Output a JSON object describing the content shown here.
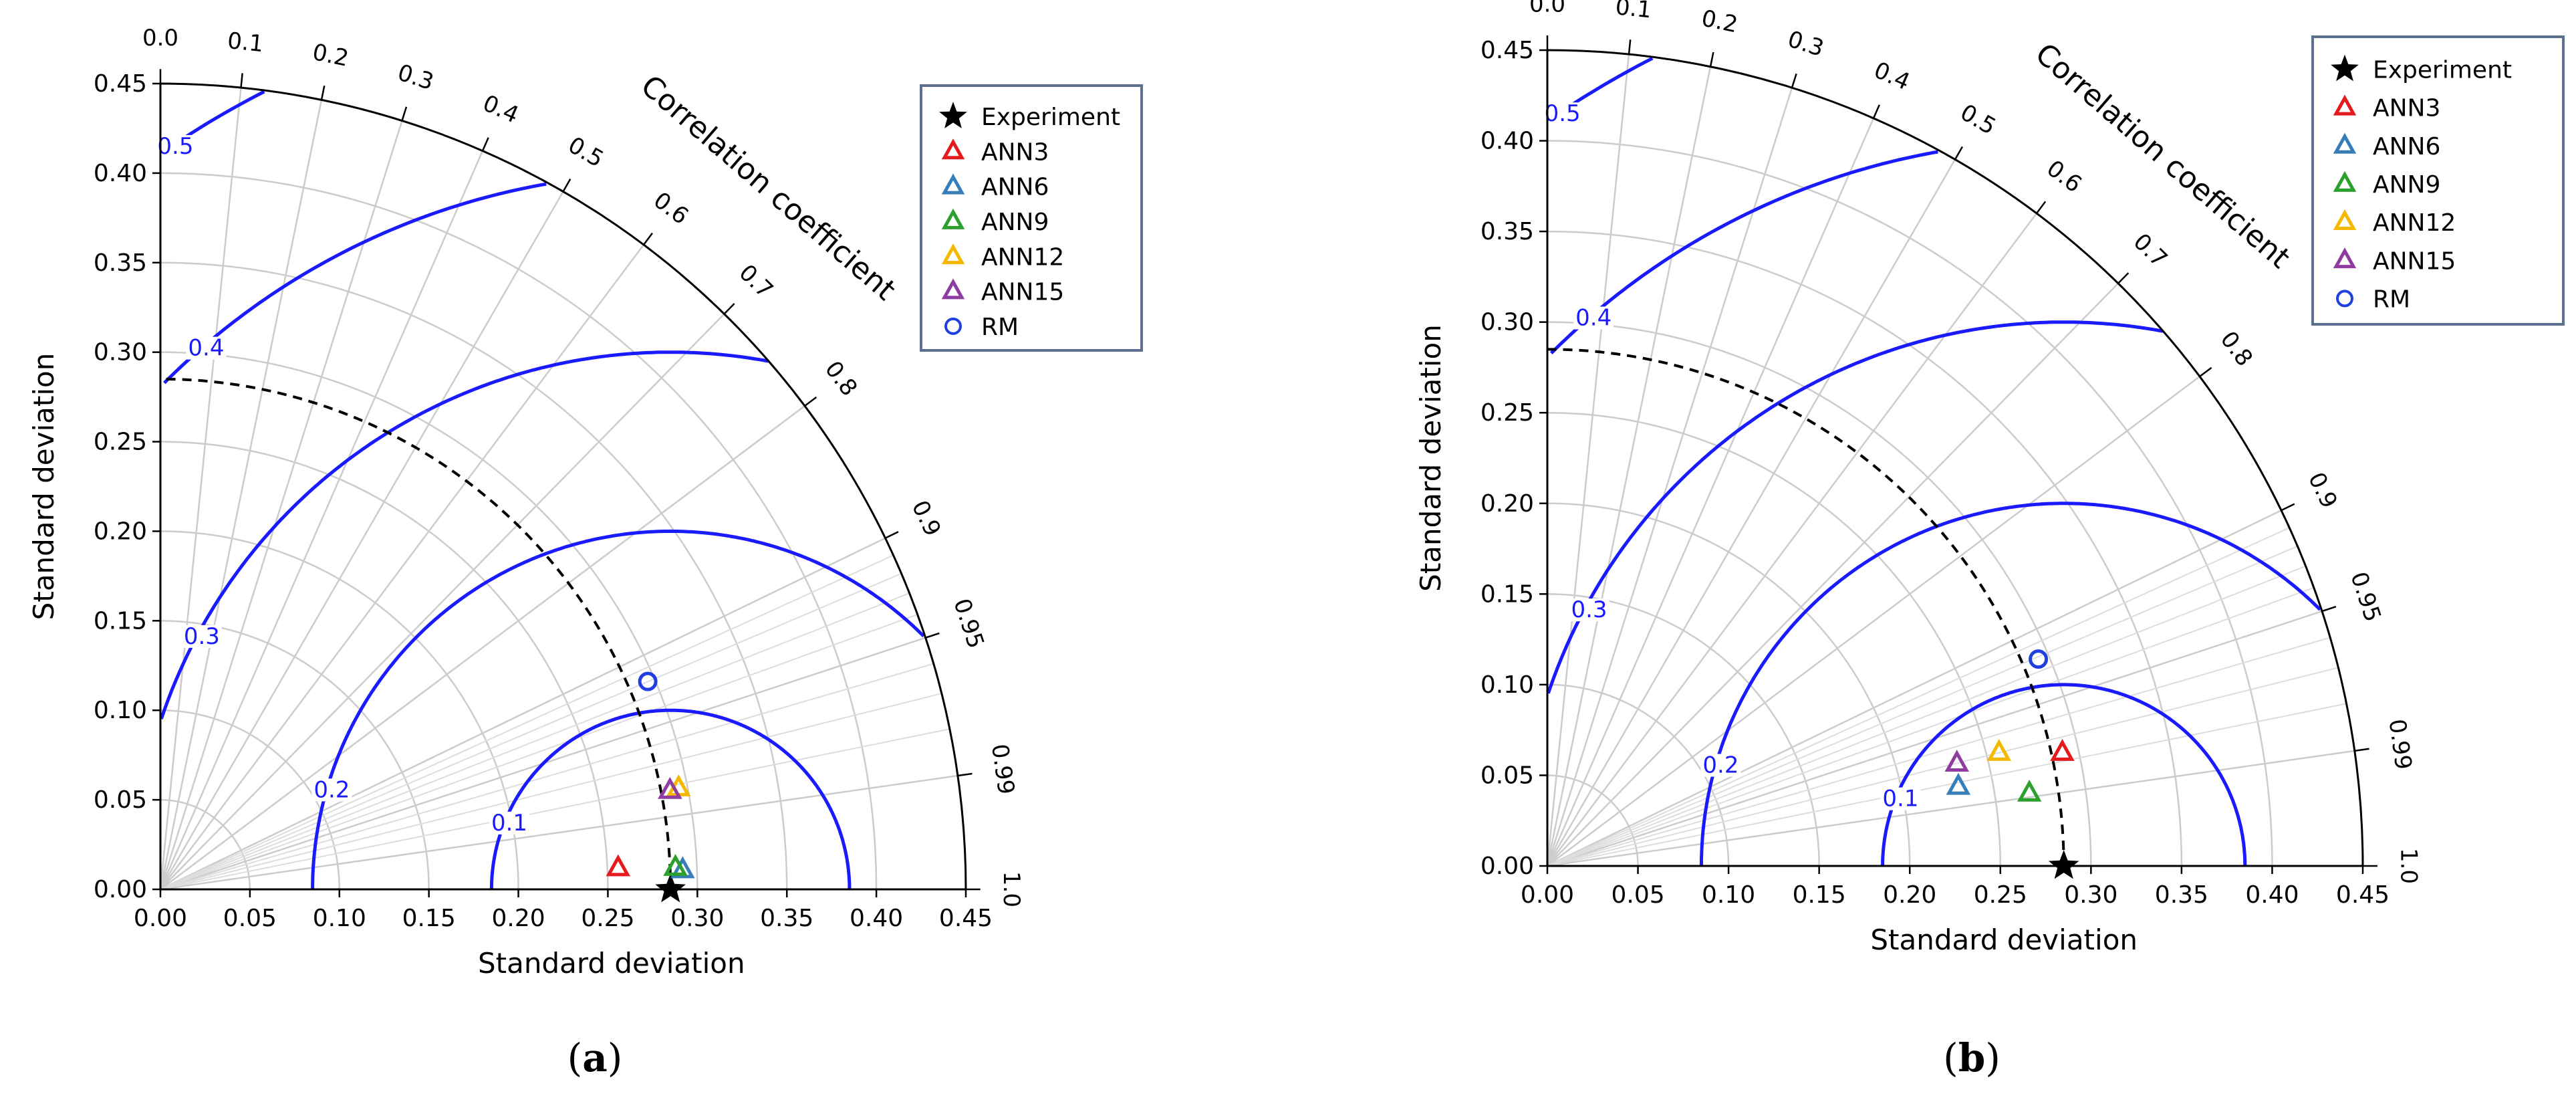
{
  "chart_data": [
    {
      "type": "scatter",
      "subtype": "taylor-diagram",
      "panel": "a",
      "xlabel": "Standard deviation",
      "ylabel": "Standard deviation",
      "angular_label": "Correlation coefficient",
      "xlim": [
        0,
        0.45
      ],
      "ylim": [
        0,
        0.45
      ],
      "std_ticks": [
        "0.00",
        "0.05",
        "0.10",
        "0.15",
        "0.20",
        "0.25",
        "0.30",
        "0.35",
        "0.40",
        "0.45"
      ],
      "std_tick_values": [
        0,
        0.05,
        0.1,
        0.15,
        0.2,
        0.25,
        0.3,
        0.35,
        0.4,
        0.45
      ],
      "corr_ticks": [
        "0.0",
        "0.1",
        "0.2",
        "0.3",
        "0.4",
        "0.5",
        "0.6",
        "0.7",
        "0.8",
        "0.9",
        "0.95",
        "0.99",
        "1.0"
      ],
      "corr_tick_values": [
        0.0,
        0.1,
        0.2,
        0.3,
        0.4,
        0.5,
        0.6,
        0.7,
        0.8,
        0.9,
        0.95,
        0.99,
        1.0
      ],
      "rms_contours": [
        {
          "value": 0.1,
          "label": "0.1"
        },
        {
          "value": 0.2,
          "label": "0.2"
        },
        {
          "value": 0.3,
          "label": "0.3"
        },
        {
          "value": 0.4,
          "label": "0.4"
        },
        {
          "value": 0.5,
          "label": "0.5"
        }
      ],
      "reference_std": 0.285,
      "points": [
        {
          "name": "Experiment",
          "std": 0.285,
          "corr": 1.0,
          "marker": "star",
          "color": "#000000"
        },
        {
          "name": "ANN3",
          "std": 0.256,
          "corr": 0.9989,
          "marker": "triangle",
          "color": "#e41a1c"
        },
        {
          "name": "ANN6",
          "std": 0.292,
          "corr": 0.9993,
          "marker": "triangle",
          "color": "#377eb8"
        },
        {
          "name": "ANN9",
          "std": 0.288,
          "corr": 0.9991,
          "marker": "triangle",
          "color": "#2ca02c"
        },
        {
          "name": "ANN12",
          "std": 0.295,
          "corr": 0.9814,
          "marker": "triangle",
          "color": "#f5b800"
        },
        {
          "name": "ANN15",
          "std": 0.29,
          "corr": 0.9817,
          "marker": "triangle",
          "color": "#8e3ca0"
        },
        {
          "name": "RM",
          "std": 0.296,
          "corr": 0.9199,
          "marker": "circle",
          "color": "#1f3fe0"
        }
      ],
      "legend": [
        "Experiment",
        "ANN3",
        "ANN6",
        "ANN9",
        "ANN12",
        "ANN15",
        "RM"
      ],
      "legend_position": "top-right"
    },
    {
      "type": "scatter",
      "subtype": "taylor-diagram",
      "panel": "b",
      "xlabel": "Standard deviation",
      "ylabel": "Standard deviation",
      "angular_label": "Correlation coefficient",
      "xlim": [
        0,
        0.45
      ],
      "ylim": [
        0,
        0.45
      ],
      "std_ticks": [
        "0.00",
        "0.05",
        "0.10",
        "0.15",
        "0.20",
        "0.25",
        "0.30",
        "0.35",
        "0.40",
        "0.45"
      ],
      "std_tick_values": [
        0,
        0.05,
        0.1,
        0.15,
        0.2,
        0.25,
        0.3,
        0.35,
        0.4,
        0.45
      ],
      "corr_ticks": [
        "0.0",
        "0.1",
        "0.2",
        "0.3",
        "0.4",
        "0.5",
        "0.6",
        "0.7",
        "0.8",
        "0.9",
        "0.95",
        "0.99",
        "1.0"
      ],
      "corr_tick_values": [
        0.0,
        0.1,
        0.2,
        0.3,
        0.4,
        0.5,
        0.6,
        0.7,
        0.8,
        0.9,
        0.95,
        0.99,
        1.0
      ],
      "rms_contours": [
        {
          "value": 0.1,
          "label": "0.1"
        },
        {
          "value": 0.2,
          "label": "0.2"
        },
        {
          "value": 0.3,
          "label": "0.3"
        },
        {
          "value": 0.4,
          "label": "0.4"
        },
        {
          "value": 0.5,
          "label": "0.5"
        }
      ],
      "reference_std": 0.285,
      "points": [
        {
          "name": "Experiment",
          "std": 0.285,
          "corr": 1.0,
          "marker": "star",
          "color": "#000000"
        },
        {
          "name": "ANN3",
          "std": 0.291,
          "corr": 0.9766,
          "marker": "triangle",
          "color": "#e41a1c"
        },
        {
          "name": "ANN6",
          "std": 0.231,
          "corr": 0.9818,
          "marker": "triangle",
          "color": "#377eb8"
        },
        {
          "name": "ANN9",
          "std": 0.269,
          "corr": 0.9888,
          "marker": "triangle",
          "color": "#2ca02c"
        },
        {
          "name": "ANN12",
          "std": 0.257,
          "corr": 0.9699,
          "marker": "triangle",
          "color": "#f5b800"
        },
        {
          "name": "ANN15",
          "std": 0.233,
          "corr": 0.97,
          "marker": "triangle",
          "color": "#8e3ca0"
        },
        {
          "name": "RM",
          "std": 0.294,
          "corr": 0.9216,
          "marker": "circle",
          "color": "#1f3fe0"
        }
      ],
      "legend": [
        "Experiment",
        "ANN3",
        "ANN6",
        "ANN9",
        "ANN12",
        "ANN15",
        "RM"
      ],
      "legend_position": "top-right"
    }
  ],
  "captions": {
    "a": "a",
    "b": "b"
  }
}
